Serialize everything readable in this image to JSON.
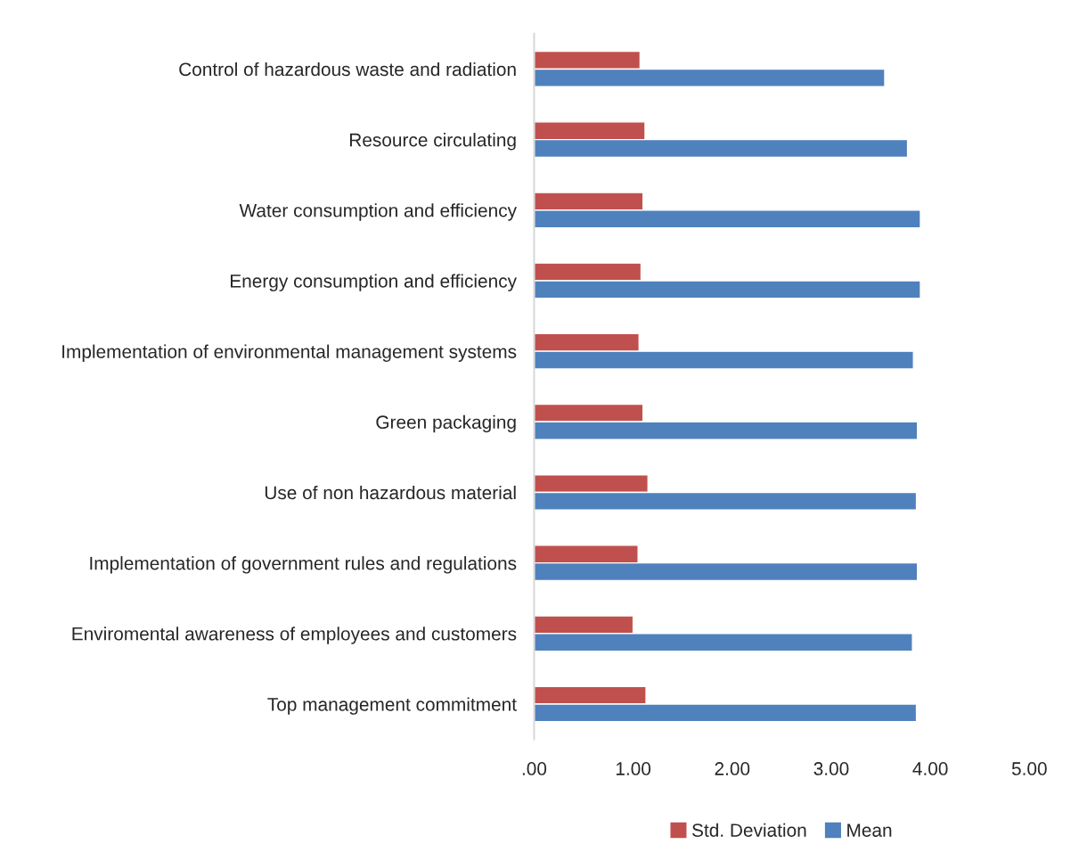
{
  "chart_data": {
    "type": "bar",
    "orientation": "horizontal",
    "categories": [
      "Control of hazardous waste and radiation",
      "Resource circulating",
      "Water consumption and efficiency",
      "Energy consumption and efficiency",
      "Implementation of environmental management systems",
      "Green packaging",
      "Use of non hazardous material",
      "Implementation of government rules and regulations",
      "Enviromental awareness of employees and customers",
      "Top management commitment"
    ],
    "series": [
      {
        "name": "Std. Deviation",
        "color": "#c0504d",
        "values": [
          1.07,
          1.12,
          1.1,
          1.08,
          1.06,
          1.1,
          1.15,
          1.05,
          1.0,
          1.13
        ]
      },
      {
        "name": "Mean",
        "color": "#4f81bd",
        "values": [
          3.54,
          3.77,
          3.9,
          3.9,
          3.83,
          3.87,
          3.86,
          3.87,
          3.82,
          3.86
        ]
      }
    ],
    "xlim": [
      0,
      5
    ],
    "xticks": [
      {
        "value": 0,
        "label": ".00"
      },
      {
        "value": 1,
        "label": "1.00"
      },
      {
        "value": 2,
        "label": "2.00"
      },
      {
        "value": 3,
        "label": "3.00"
      },
      {
        "value": 4,
        "label": "4.00"
      },
      {
        "value": 5,
        "label": "5.00"
      }
    ],
    "grid": false,
    "legend": "bottom"
  }
}
